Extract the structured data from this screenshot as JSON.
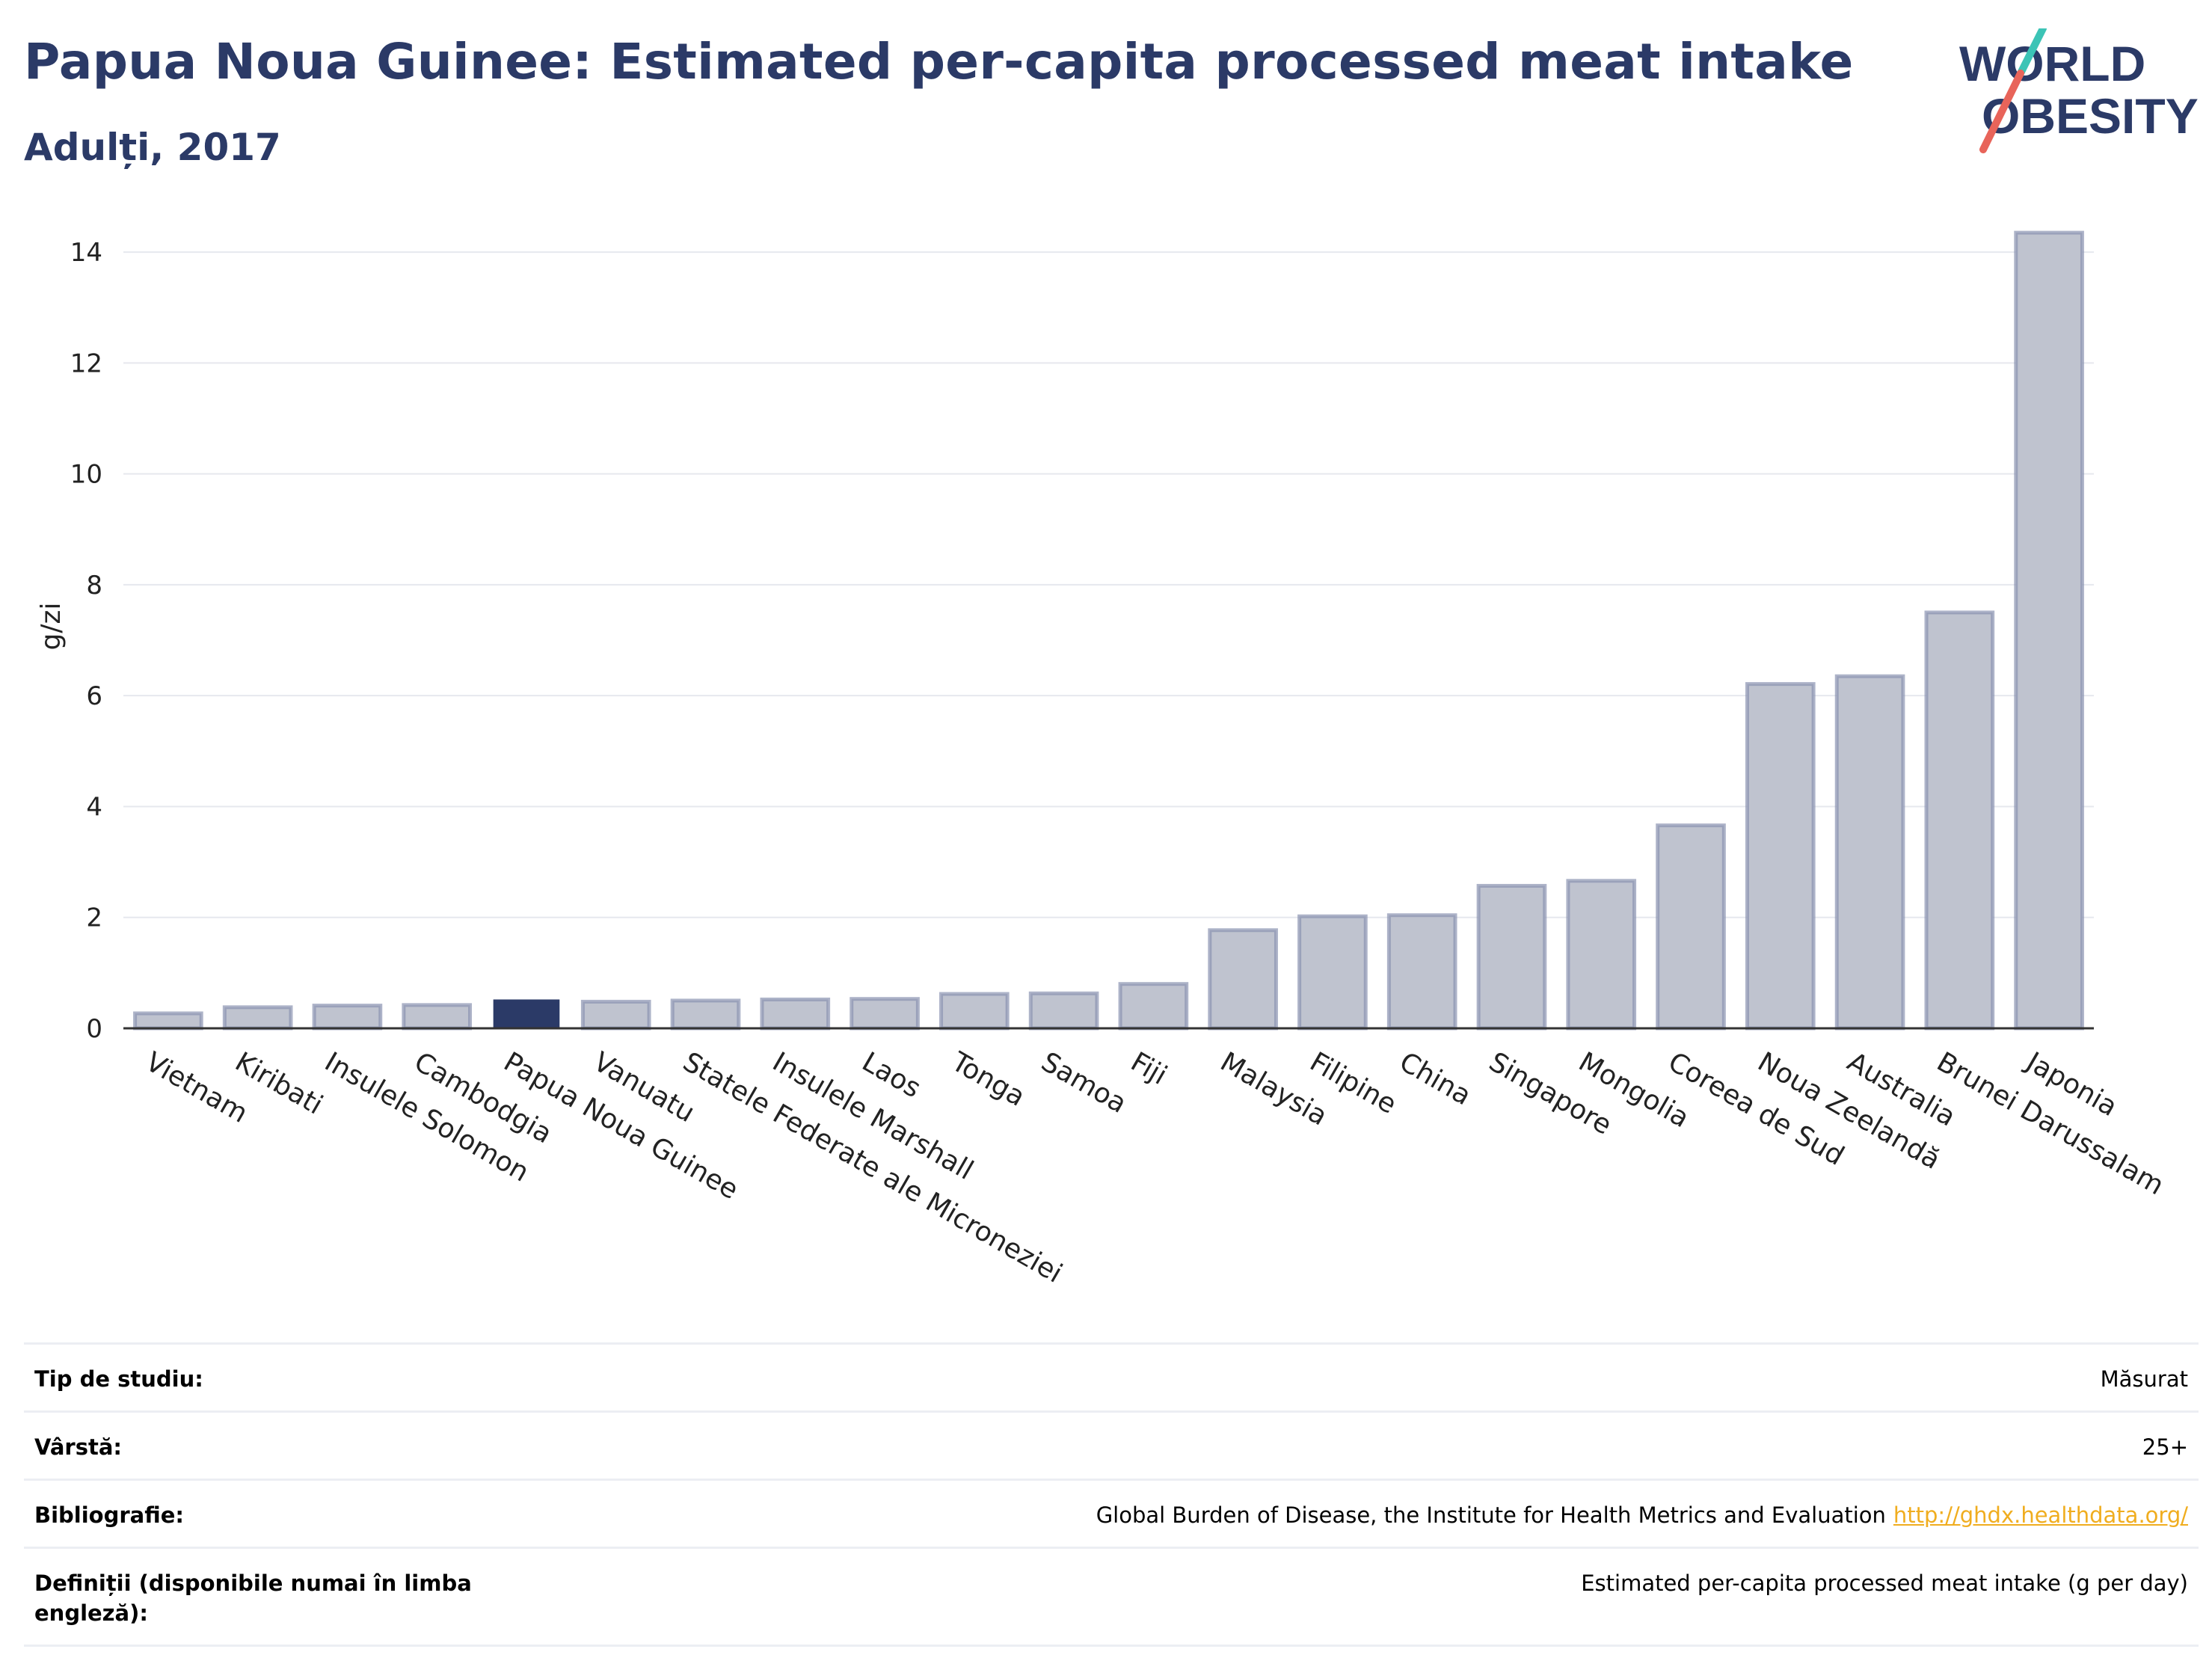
{
  "header": {
    "title": "Papua Noua Guinee: Estimated per-capita processed meat intake",
    "subtitle": "Adulți, 2017"
  },
  "logo": {
    "line1": "WORLD",
    "line2": "OBESITY"
  },
  "colors": {
    "title": "#2b3a67",
    "bar": "#bfc3cf",
    "bar_stroke": "#8a93b0",
    "highlight": "#2b3a67",
    "link": "#f0ad1f",
    "logo_teal": "#3cc4b6",
    "logo_red": "#e8645a"
  },
  "chart_data": {
    "type": "bar",
    "ylabel": "g/zi",
    "ylim": [
      0,
      14.5
    ],
    "yticks": [
      0,
      2,
      4,
      6,
      8,
      10,
      12,
      14
    ],
    "grid": true,
    "highlight": "Papua Noua Guinee",
    "categories": [
      "Vietnam",
      "Kiribati",
      "Insulele Solomon",
      "Cambodgia",
      "Papua Noua Guinee",
      "Vanuatu",
      "Statele Federate ale Microneziei",
      "Insulele Marshall",
      "Laos",
      "Tonga",
      "Samoa",
      "Fiji",
      "Malaysia",
      "Filipine",
      "China",
      "Singapore",
      "Mongolia",
      "Coreea de Sud",
      "Noua Zeelandă",
      "Australia",
      "Brunei Darussalam",
      "Japonia"
    ],
    "values": [
      0.27,
      0.38,
      0.41,
      0.42,
      0.52,
      0.48,
      0.5,
      0.52,
      0.53,
      0.62,
      0.63,
      0.8,
      1.77,
      2.02,
      2.04,
      2.57,
      2.66,
      3.66,
      6.21,
      6.35,
      7.5,
      14.35
    ]
  },
  "meta": {
    "rows": [
      {
        "label": "Tip de studiu:",
        "value": "Măsurat"
      },
      {
        "label": "Vârstă:",
        "value": "25+"
      },
      {
        "label": "Bibliografie:",
        "value": "Global Burden of Disease, the Institute for Health Metrics and Evaluation",
        "link": "http://ghdx.healthdata.org/"
      },
      {
        "label": "Definiții (disponibile numai în limba engleză):",
        "value": "Estimated per-capita processed meat intake (g per day)"
      }
    ]
  }
}
